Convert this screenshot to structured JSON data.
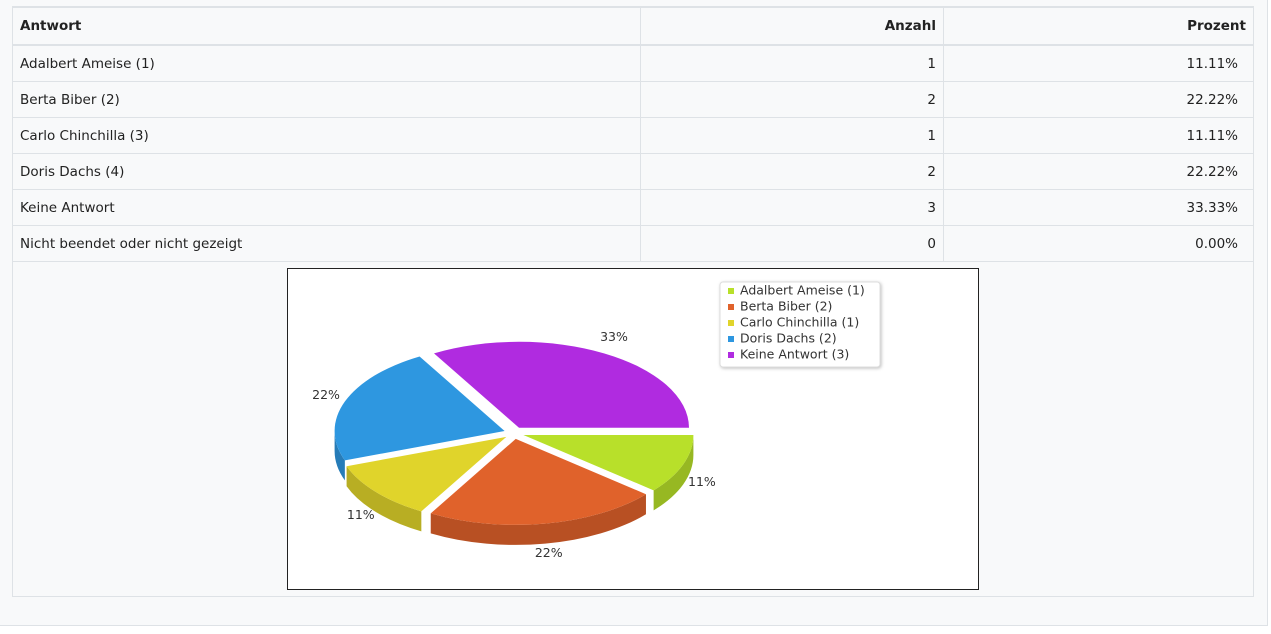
{
  "table": {
    "headers": [
      "Antwort",
      "Anzahl",
      "Prozent"
    ],
    "rows": [
      [
        "Adalbert Ameise (1)",
        1,
        "11.11%"
      ],
      [
        "Berta Biber (2)",
        2,
        "22.22%"
      ],
      [
        "Carlo Chinchilla (3)",
        1,
        "11.11%"
      ],
      [
        "Doris Dachs (4)",
        2,
        "22.22%"
      ],
      [
        "Keine Antwort",
        3,
        "33.33%"
      ],
      [
        "Nicht beendet oder nicht gezeigt",
        0,
        "0.00%"
      ]
    ]
  },
  "chart_data": {
    "type": "pie",
    "categories": [
      "Adalbert Ameise (1)",
      "Berta Biber (2)",
      "Carlo Chinchilla (1)",
      "Doris Dachs (2)",
      "Keine Antwort (3)"
    ],
    "values": [
      11.11,
      22.22,
      11.11,
      22.22,
      33.33
    ],
    "value_labels": [
      "11%",
      "22%",
      "11%",
      "22%",
      "33%"
    ],
    "colors": [
      "#b8e02a",
      "#e0622b",
      "#e0d42b",
      "#2e97e0",
      "#b02be0"
    ]
  }
}
